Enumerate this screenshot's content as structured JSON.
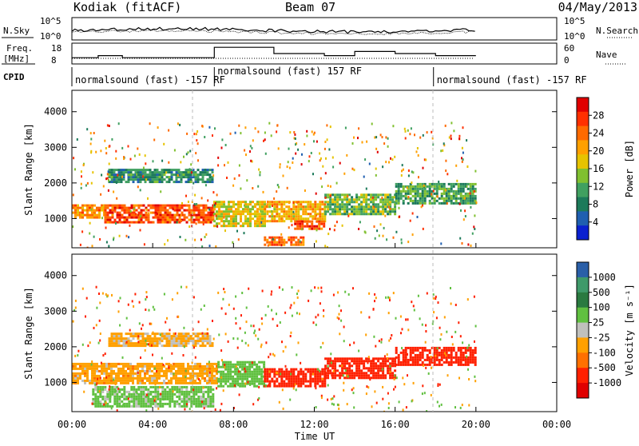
{
  "header": {
    "station": "Kodiak (fitACF)",
    "beam": "Beam 07",
    "date": "04/May/2013"
  },
  "panels": {
    "nsky": {
      "label": "N.Sky",
      "ticks": [
        "10^5",
        "10^0"
      ],
      "right_ticks": [
        "10^5",
        "10^0"
      ],
      "right_label": "N.Search"
    },
    "freq": {
      "label_top": "Freq.",
      "label_bottom": "[MHz]",
      "ticks": [
        "18",
        "8"
      ],
      "right_ticks": [
        "60",
        "0"
      ],
      "right_label": "Nave"
    },
    "cpid": {
      "label": "CPID",
      "segments": [
        {
          "text": "normalsound (fast) -157 RF",
          "start_h": 0.0
        },
        {
          "text": "normalsound (fast) 157 RF",
          "start_h": 7.05
        },
        {
          "text": "normalsound (fast) -157 RF",
          "start_h": 17.9
        }
      ]
    }
  },
  "axes": {
    "xlabel": "Time UT",
    "xticks": [
      "00:00",
      "04:00",
      "08:00",
      "12:00",
      "16:00",
      "20:00",
      "00:00"
    ],
    "ylabel_range": "Slant Range [km]",
    "yticks": [
      "1000",
      "2000",
      "3000",
      "4000"
    ]
  },
  "colorbars": {
    "power": {
      "label": "Power [dB]",
      "ticks": [
        "28",
        "24",
        "20",
        "16",
        "12",
        "8",
        "4"
      ],
      "colors": [
        "#e00000",
        "#ff3000",
        "#ff6a00",
        "#ffa000",
        "#e6c300",
        "#80c030",
        "#40a060",
        "#1c7a5a",
        "#1f5fb0",
        "#0a20d0"
      ]
    },
    "velocity": {
      "label": "Velocity [m s⁻¹]",
      "ticks": [
        "1000",
        "500",
        "100",
        "25",
        "-25",
        "-100",
        "-500",
        "-1000"
      ],
      "colors": [
        "#2a5fa8",
        "#3f9a6a",
        "#2a7a40",
        "#60c040",
        "#c0c0bc",
        "#ffa000",
        "#ff7000",
        "#ff2000",
        "#e00000"
      ]
    }
  },
  "chart_data": {
    "type": "heatmap",
    "x_range_hours": [
      0,
      24
    ],
    "y_range_km": [
      180,
      4600
    ],
    "data_end_hour": 20.0,
    "power_bands": [
      {
        "t0": 0.0,
        "t1": 1.6,
        "r0": 1050,
        "r1": 1400,
        "db": 22
      },
      {
        "t0": 1.6,
        "t1": 7.0,
        "r0": 900,
        "r1": 1400,
        "db": 26
      },
      {
        "t0": 7.0,
        "t1": 9.5,
        "r0": 800,
        "r1": 1500,
        "db": 18
      },
      {
        "t0": 9.5,
        "t1": 12.5,
        "r0": 900,
        "r1": 1500,
        "db": 20
      },
      {
        "t0": 11.0,
        "t1": 12.5,
        "r0": 700,
        "r1": 950,
        "db": 26
      },
      {
        "t0": 12.5,
        "t1": 16.0,
        "r0": 1100,
        "r1": 1700,
        "db": 14
      },
      {
        "t0": 16.0,
        "t1": 20.0,
        "r0": 1400,
        "r1": 2000,
        "db": 12
      },
      {
        "t0": 1.8,
        "t1": 7.0,
        "r0": 2000,
        "r1": 2400,
        "db": 10
      },
      {
        "t0": 9.5,
        "t1": 11.5,
        "r0": 250,
        "r1": 500,
        "db": 24
      }
    ],
    "velocity_bands": [
      {
        "t0": 0.0,
        "t1": 7.2,
        "r0": 950,
        "r1": 1550,
        "v": 0
      },
      {
        "t0": 1.0,
        "t1": 7.0,
        "r0": 300,
        "r1": 900,
        "v": 120
      },
      {
        "t0": 7.2,
        "t1": 9.5,
        "r0": 900,
        "r1": 1600,
        "v": 200
      },
      {
        "t0": 9.5,
        "t1": 12.5,
        "r0": 900,
        "r1": 1400,
        "v": -150
      },
      {
        "t0": 12.5,
        "t1": 16.0,
        "r0": 1100,
        "r1": 1700,
        "v": -200
      },
      {
        "t0": 16.0,
        "t1": 20.0,
        "r0": 1500,
        "r1": 2000,
        "v": -300
      },
      {
        "t0": 1.8,
        "t1": 7.0,
        "r0": 2000,
        "r1": 2400,
        "v": 10
      }
    ],
    "freq_mhz_steps": [
      {
        "t0": 0.0,
        "t1": 1.3,
        "v": 11
      },
      {
        "t0": 1.3,
        "t1": 2.5,
        "v": 12
      },
      {
        "t0": 2.5,
        "t1": 7.05,
        "v": 11
      },
      {
        "t0": 7.05,
        "t1": 10.0,
        "v": 16
      },
      {
        "t0": 10.0,
        "t1": 12.5,
        "v": 13
      },
      {
        "t0": 12.5,
        "t1": 14.0,
        "v": 12
      },
      {
        "t0": 14.0,
        "t1": 16.0,
        "v": 14
      },
      {
        "t0": 16.0,
        "t1": 18.0,
        "v": 13
      },
      {
        "t0": 18.0,
        "t1": 20.0,
        "v": 12
      }
    ]
  }
}
